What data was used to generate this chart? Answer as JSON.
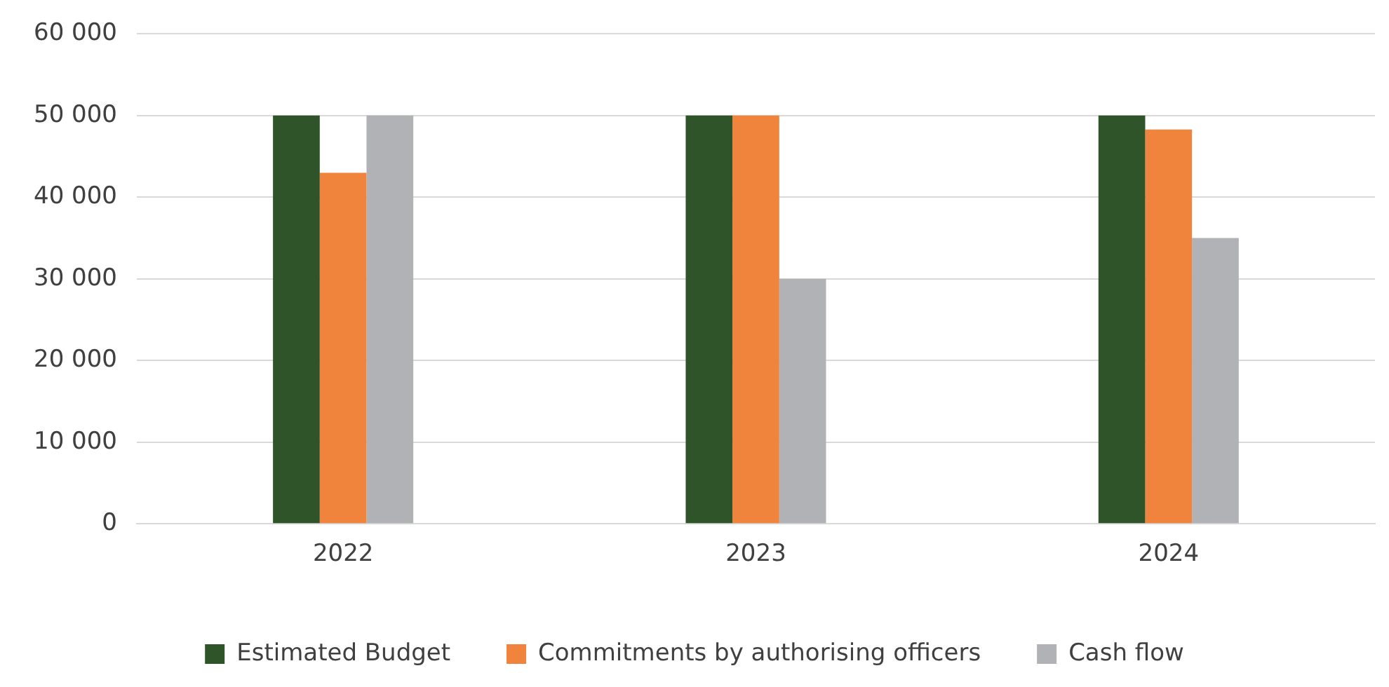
{
  "chart_data": {
    "type": "bar",
    "categories": [
      "2022",
      "2023",
      "2024"
    ],
    "series": [
      {
        "name": "Estimated Budget",
        "color": "#2f5429",
        "values": [
          50000,
          50000,
          50000
        ]
      },
      {
        "name": "Commitments by authorising officers",
        "color": "#f0843c",
        "values": [
          43000,
          50000,
          48300
        ]
      },
      {
        "name": "Cash flow",
        "color": "#b1b2b5",
        "values": [
          50000,
          30000,
          35000
        ]
      }
    ],
    "ylim": [
      0,
      60000
    ],
    "yticks": [
      {
        "value": 0,
        "label": "0"
      },
      {
        "value": 10000,
        "label": "10 000"
      },
      {
        "value": 20000,
        "label": "20 000"
      },
      {
        "value": 30000,
        "label": "30 000"
      },
      {
        "value": 40000,
        "label": "40 000"
      },
      {
        "value": 50000,
        "label": "50 000"
      },
      {
        "value": 60000,
        "label": "60 000"
      }
    ],
    "grid": "y",
    "legend": "bottom"
  }
}
